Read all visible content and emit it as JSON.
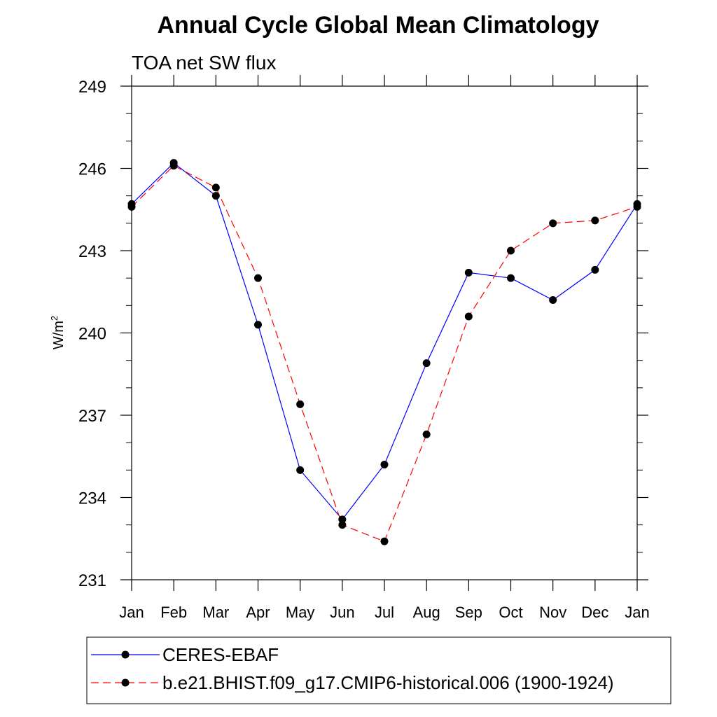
{
  "chart_data": {
    "type": "line",
    "title": "Annual Cycle Global Mean Climatology",
    "subtitle": "TOA net SW flux",
    "ylabel": "W/m",
    "ylabel_sup": "2",
    "categories": [
      "Jan",
      "Feb",
      "Mar",
      "Apr",
      "May",
      "Jun",
      "Jul",
      "Aug",
      "Sep",
      "Oct",
      "Nov",
      "Dec",
      "Jan"
    ],
    "ylim": [
      231,
      249
    ],
    "yticks": [
      231,
      234,
      237,
      240,
      243,
      246,
      249
    ],
    "grid": false,
    "legend_position": "bottom",
    "series": [
      {
        "name": "CERES-EBAF",
        "color": "#0000ff",
        "dash": "solid",
        "marker": "filled-circle",
        "values": [
          244.7,
          246.2,
          245.0,
          240.3,
          235.0,
          233.2,
          235.2,
          238.9,
          242.2,
          242.0,
          241.2,
          242.3,
          244.7
        ]
      },
      {
        "name": "b.e21.BHIST.f09_g17.CMIP6-historical.006 (1900-1924)",
        "color": "#ff0000",
        "dash": "dashed",
        "marker": "filled-circle",
        "values": [
          244.6,
          246.1,
          245.3,
          242.0,
          237.4,
          233.0,
          232.4,
          236.3,
          240.6,
          243.0,
          244.0,
          244.1,
          244.6
        ]
      }
    ]
  }
}
